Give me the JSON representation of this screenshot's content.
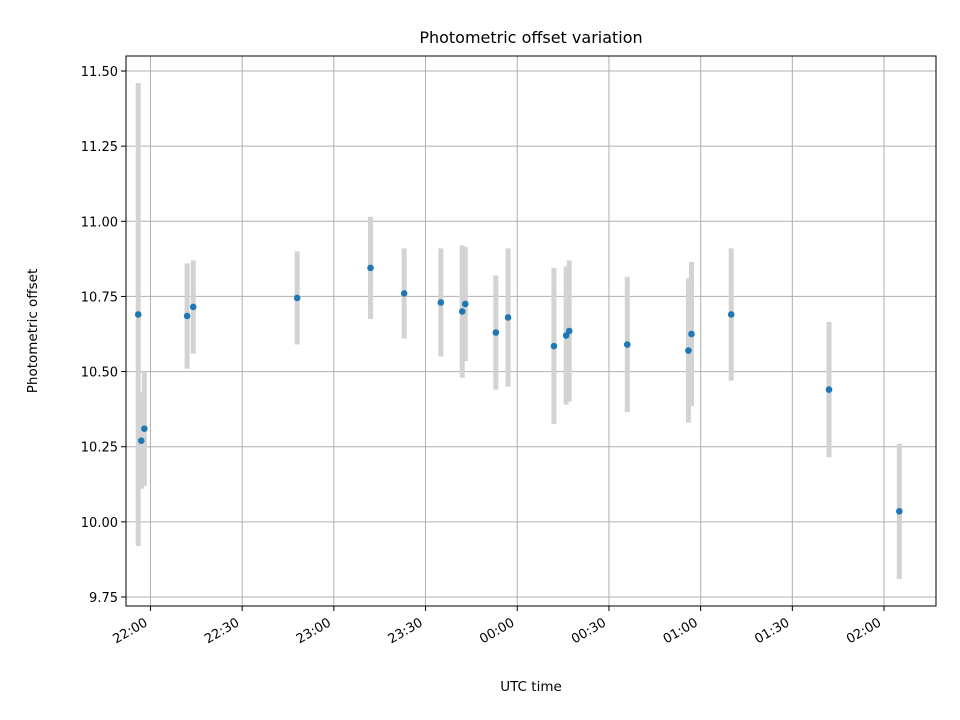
{
  "chart_data": {
    "type": "scatter",
    "title": "Photometric offset variation",
    "xlabel": "UTC time",
    "ylabel": "Photometric offset",
    "x_axis_kind": "time",
    "xlim": [
      "21:52",
      "02:17"
    ],
    "ylim": [
      9.72,
      11.55
    ],
    "yticks": [
      9.75,
      10.0,
      10.25,
      10.5,
      10.75,
      11.0,
      11.25,
      11.5
    ],
    "ytick_labels": [
      "9.75",
      "10.00",
      "10.25",
      "10.50",
      "10.75",
      "11.00",
      "11.25",
      "11.50"
    ],
    "xticks": [
      "22:00",
      "22:30",
      "23:00",
      "23:30",
      "00:00",
      "00:30",
      "01:00",
      "01:30",
      "02:00"
    ],
    "xtick_labels": [
      "22:00",
      "22:30",
      "23:00",
      "23:30",
      "00:00",
      "00:30",
      "01:00",
      "01:30",
      "02:00"
    ],
    "grid": true,
    "legend": "none",
    "marker_color": "#1f77b4",
    "errorbar_color": "#d3d3d3",
    "points": [
      {
        "x": "21:56",
        "y": 10.69,
        "yerr": 0.77
      },
      {
        "x": "21:57",
        "y": 10.27,
        "yerr": 0.16
      },
      {
        "x": "21:58",
        "y": 10.31,
        "yerr": 0.19
      },
      {
        "x": "22:12",
        "y": 10.685,
        "yerr": 0.175
      },
      {
        "x": "22:14",
        "y": 10.715,
        "yerr": 0.155
      },
      {
        "x": "22:48",
        "y": 10.745,
        "yerr": 0.155
      },
      {
        "x": "23:12",
        "y": 10.845,
        "yerr": 0.17
      },
      {
        "x": "23:23",
        "y": 10.76,
        "yerr": 0.15
      },
      {
        "x": "23:35",
        "y": 10.73,
        "yerr": 0.18
      },
      {
        "x": "23:42",
        "y": 10.7,
        "yerr": 0.22
      },
      {
        "x": "23:43",
        "y": 10.725,
        "yerr": 0.19
      },
      {
        "x": "23:53",
        "y": 10.63,
        "yerr": 0.19
      },
      {
        "x": "23:57",
        "y": 10.68,
        "yerr": 0.23
      },
      {
        "x": "00:12",
        "y": 10.585,
        "yerr": 0.26
      },
      {
        "x": "00:16",
        "y": 10.62,
        "yerr": 0.23
      },
      {
        "x": "00:17",
        "y": 10.635,
        "yerr": 0.235
      },
      {
        "x": "00:36",
        "y": 10.59,
        "yerr": 0.225
      },
      {
        "x": "00:56",
        "y": 10.57,
        "yerr": 0.24
      },
      {
        "x": "00:57",
        "y": 10.625,
        "yerr": 0.24
      },
      {
        "x": "01:10",
        "y": 10.69,
        "yerr": 0.22
      },
      {
        "x": "01:42",
        "y": 10.44,
        "yerr": 0.225
      },
      {
        "x": "02:05",
        "y": 10.035,
        "yerr": 0.225
      }
    ]
  }
}
